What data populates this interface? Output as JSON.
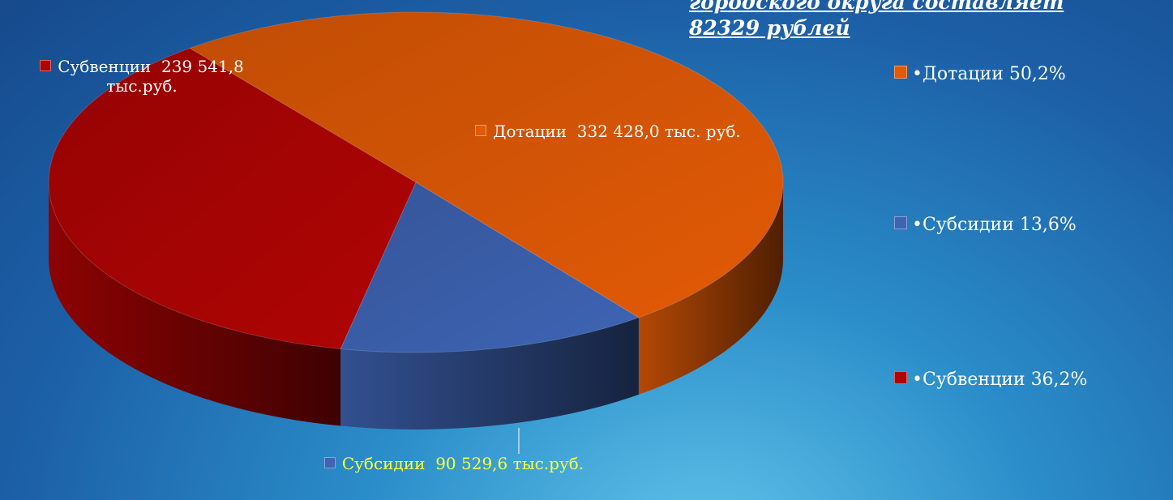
{
  "chart_data": {
    "type": "pie",
    "title": [
      "городского округа составляет",
      "82329  рублей"
    ],
    "categories": [
      "Дотации",
      "Субсидии",
      "Субвенции"
    ],
    "values": [
      332428.0,
      90529.6,
      239541.8
    ],
    "value_labels": [
      "332 428,0 тыс. руб.",
      "90 529,6 тыс.руб.",
      "239 541,8 тыс.руб."
    ],
    "percents": [
      50.2,
      13.6,
      36.2
    ],
    "percent_labels": [
      "50,2%",
      "13,6%",
      "36,2%"
    ],
    "colors": [
      "#e25a06",
      "#3e64b4",
      "#b00404"
    ],
    "legend": "right"
  }
}
